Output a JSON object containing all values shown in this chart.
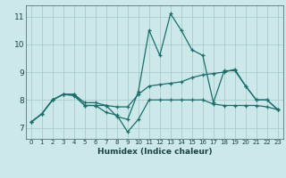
{
  "title": "",
  "xlabel": "Humidex (Indice chaleur)",
  "ylabel": "",
  "bg_color": "#cce8e8",
  "grid_color": "#aacccc",
  "line_color": "#1a6e6e",
  "xlim": [
    -0.5,
    23.5
  ],
  "ylim": [
    6.6,
    11.4
  ],
  "xticks": [
    0,
    1,
    2,
    3,
    4,
    5,
    6,
    7,
    8,
    9,
    10,
    11,
    12,
    13,
    14,
    15,
    16,
    17,
    18,
    19,
    20,
    21,
    22,
    23
  ],
  "yticks": [
    7,
    8,
    9,
    10,
    11
  ],
  "series": [
    [
      7.2,
      7.5,
      8.0,
      8.2,
      8.2,
      7.8,
      7.8,
      7.8,
      7.4,
      7.3,
      8.3,
      10.5,
      9.6,
      11.1,
      10.5,
      9.8,
      9.6,
      7.9,
      9.05,
      9.05,
      8.5,
      8.0,
      8.0,
      7.65
    ],
    [
      7.2,
      7.5,
      8.0,
      8.2,
      8.2,
      7.9,
      7.9,
      7.8,
      7.75,
      7.75,
      8.2,
      8.5,
      8.55,
      8.6,
      8.65,
      8.8,
      8.9,
      8.95,
      9.0,
      9.1,
      8.5,
      8.0,
      8.0,
      7.65
    ],
    [
      7.2,
      7.5,
      8.0,
      8.2,
      8.15,
      7.8,
      7.8,
      7.55,
      7.45,
      6.85,
      7.3,
      8.0,
      8.0,
      8.0,
      8.0,
      8.0,
      8.0,
      7.85,
      7.8,
      7.8,
      7.8,
      7.8,
      7.75,
      7.65
    ]
  ]
}
